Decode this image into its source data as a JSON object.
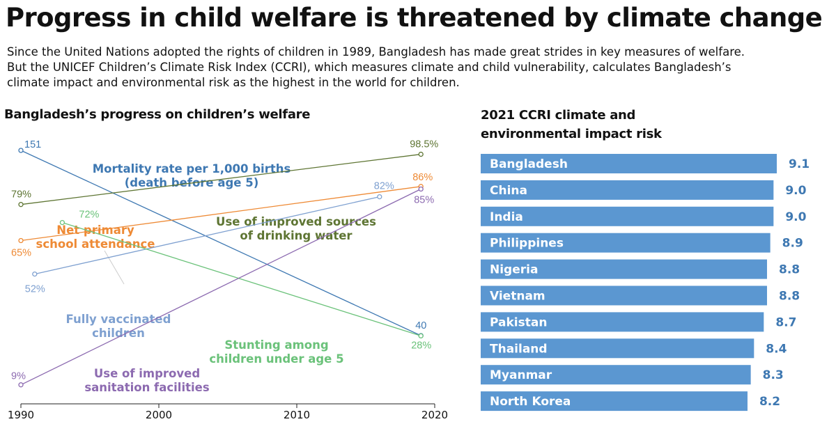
{
  "headline": "Progress in child welfare is threatened by climate change",
  "intro": [
    "Since the United Nations adopted the rights of children in 1989, Bangladesh has made great strides in key measures of welfare.",
    "But the UNICEF Children’s Climate Risk Index (CCRI), which measures climate and child vulnerability, calculates Bangladesh’s",
    "climate impact and environmental risk as the highest in the world for children."
  ],
  "chart_data": [
    {
      "type": "line",
      "title": "Bangladesh’s progress on children’s welfare",
      "xlim": [
        1990,
        2020
      ],
      "x_ticks": [
        "1990",
        "2000",
        "2010",
        "2020"
      ],
      "series": [
        {
          "name": "Mortality rate per 1,000 births (death before age 5)",
          "label_lines": [
            "Mortality rate per 1,000 births",
            "(death before age 5)"
          ],
          "color": "#3e78b2",
          "points": [
            {
              "x": 1990,
              "y": 151,
              "label": "151"
            },
            {
              "x": 2019,
              "y": 40,
              "label": "40"
            }
          ]
        },
        {
          "name": "Use of improved sources of drinking water",
          "label_lines": [
            "Use of improved sources",
            "of drinking water"
          ],
          "color": "#5e7533",
          "points": [
            {
              "x": 1990,
              "y": 79,
              "label": "79%"
            },
            {
              "x": 2019,
              "y": 98.5,
              "label": "98.5%"
            }
          ]
        },
        {
          "name": "Net primary school attendance",
          "label_lines": [
            "Net primary",
            "school attendance"
          ],
          "color": "#ee8a35",
          "points": [
            {
              "x": 1990,
              "y": 65,
              "label": "65%"
            },
            {
              "x": 2019,
              "y": 86,
              "label": "86%"
            }
          ]
        },
        {
          "name": "Fully vaccinated children",
          "label_lines": [
            "Fully vaccinated",
            "children"
          ],
          "color": "#7ea0d0",
          "points": [
            {
              "x": 1991,
              "y": 52,
              "label": "52%"
            },
            {
              "x": 2016,
              "y": 82,
              "label": "82%"
            }
          ]
        },
        {
          "name": "Stunting among children under age 5",
          "label_lines": [
            "Stunting among",
            "children under age 5"
          ],
          "color": "#6bc27a",
          "points": [
            {
              "x": 1993,
              "y": 72,
              "label": "72%"
            },
            {
              "x": 2019,
              "y": 28,
              "label": "28%"
            }
          ]
        },
        {
          "name": "Use of improved sanitation facilities",
          "label_lines": [
            "Use of improved",
            "sanitation facilities"
          ],
          "color": "#8c6ab0",
          "points": [
            {
              "x": 1990,
              "y": 9,
              "label": "9%"
            },
            {
              "x": 2019,
              "y": 85,
              "label": "85%"
            }
          ]
        }
      ]
    },
    {
      "type": "bar",
      "orientation": "horizontal",
      "title": "2021 CCRI climate and environmental impact risk",
      "title_lines": [
        "2021 CCRI climate and",
        "environmental impact risk"
      ],
      "color": "#5b97d1",
      "value_color": "#3e78b2",
      "categories": [
        "Bangladesh",
        "China",
        "India",
        "Philippines",
        "Nigeria",
        "Vietnam",
        "Pakistan",
        "Thailand",
        "Myanmar",
        "North Korea"
      ],
      "values": [
        9.1,
        9.0,
        9.0,
        8.9,
        8.8,
        8.8,
        8.7,
        8.4,
        8.3,
        8.2
      ],
      "value_labels": [
        "9.1",
        "9.0",
        "9.0",
        "8.9",
        "8.8",
        "8.8",
        "8.7",
        "8.4",
        "8.3",
        "8.2"
      ]
    }
  ]
}
